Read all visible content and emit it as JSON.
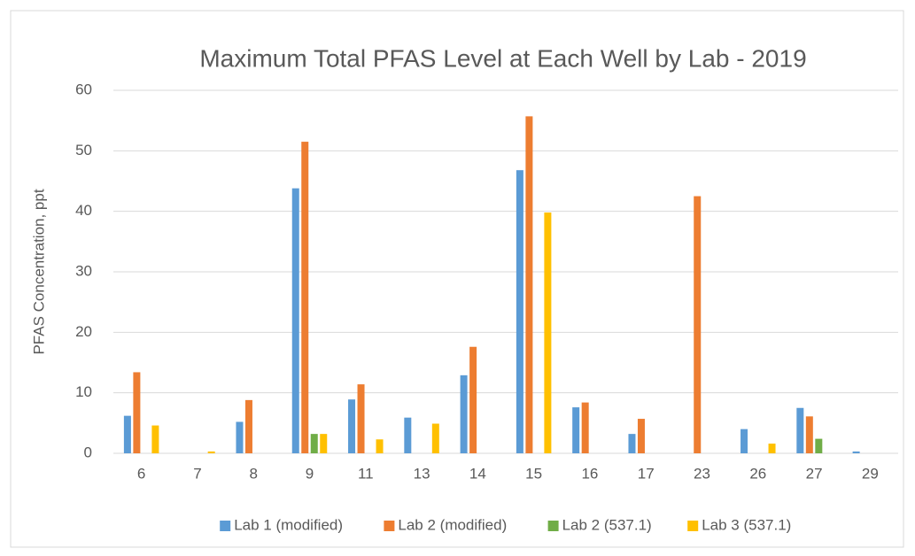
{
  "chart_data": {
    "type": "bar",
    "title": "Maximum Total PFAS Level at Each Well by Lab - 2019",
    "y_label": "PFAS Concentration, ppt",
    "categories": [
      "6",
      "7",
      "8",
      "9",
      "11",
      "13",
      "14",
      "15",
      "16",
      "17",
      "23",
      "26",
      "27",
      "29"
    ],
    "series": [
      {
        "name": "Lab 1 (modified)",
        "color": "#5b9bd5",
        "values": [
          6.2,
          0,
          5.2,
          43.8,
          8.9,
          5.9,
          12.9,
          46.8,
          7.6,
          3.2,
          0,
          4.0,
          7.5,
          0.3
        ]
      },
      {
        "name": "Lab 2 (modified)",
        "color": "#ed7d31",
        "values": [
          13.4,
          0,
          8.8,
          51.5,
          11.4,
          0,
          17.6,
          55.7,
          8.4,
          5.7,
          42.5,
          0,
          6.1,
          0
        ]
      },
      {
        "name": "Lab 2 (537.1)",
        "color": "#70ad47",
        "values": [
          0,
          0,
          0,
          3.2,
          0,
          0,
          0,
          0,
          0,
          0,
          0,
          0,
          2.4,
          0
        ]
      },
      {
        "name": "Lab 3 (537.1)",
        "color": "#ffc000",
        "values": [
          4.6,
          0.3,
          0,
          3.2,
          2.3,
          4.9,
          0,
          39.8,
          0,
          0,
          0,
          1.6,
          0,
          0
        ]
      }
    ],
    "ylim": [
      0,
      60
    ],
    "yticks": [
      0,
      10,
      20,
      30,
      40,
      50,
      60
    ],
    "grid": true,
    "legend": "bottom"
  }
}
